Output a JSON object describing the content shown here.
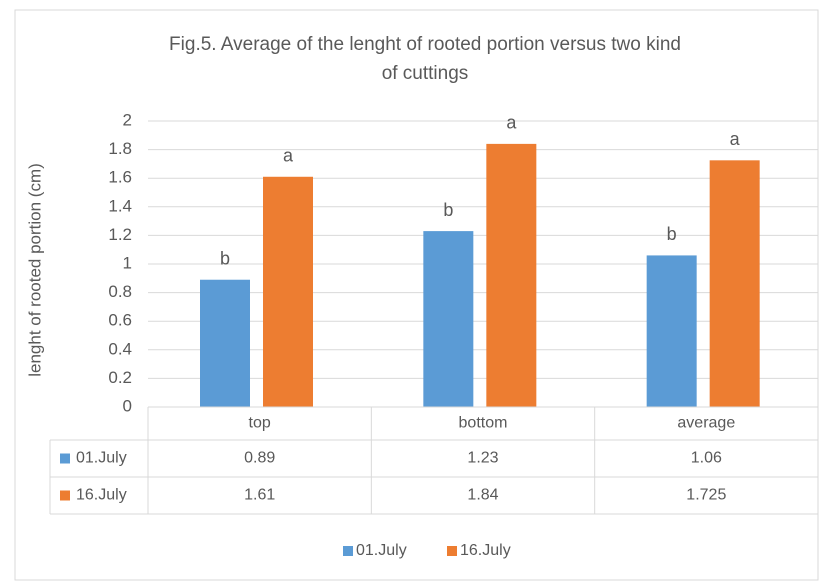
{
  "chart_data": {
    "type": "bar",
    "title": [
      "Fig.5.  Average of the lenght of rooted portion versus two kind",
      "of cuttings"
    ],
    "y_label": "lenght of rooted portion (cm)",
    "categories": [
      "top",
      "bottom",
      "average"
    ],
    "series": [
      {
        "name": "01.July",
        "color": "#5b9bd5",
        "values": [
          0.89,
          1.23,
          1.06
        ],
        "letters": [
          "b",
          "b",
          "b"
        ]
      },
      {
        "name": "16.July",
        "color": "#ed7d31",
        "values": [
          1.61,
          1.84,
          1.725
        ],
        "letters": [
          "a",
          "a",
          "a"
        ]
      }
    ],
    "ylim": [
      0,
      2
    ],
    "yticks": [
      0,
      0.2,
      0.4,
      0.6,
      0.8,
      1,
      1.2,
      1.4,
      1.6,
      1.8,
      2
    ],
    "grid": true,
    "legend": "bottom"
  }
}
